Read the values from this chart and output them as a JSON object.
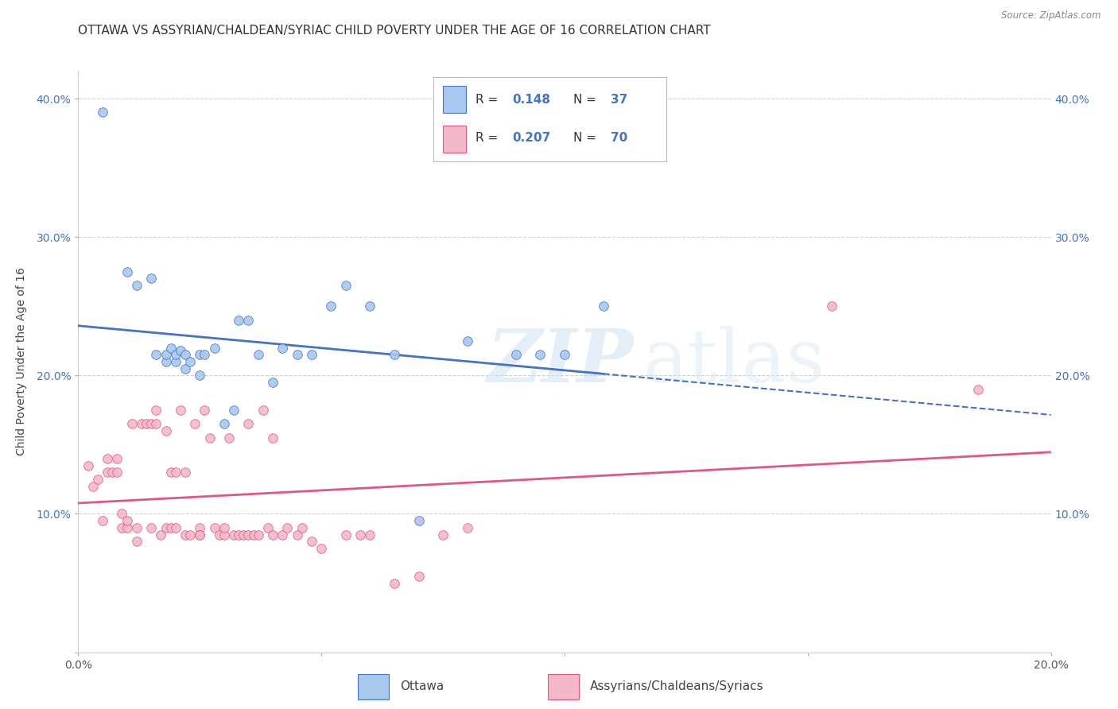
{
  "title": "OTTAWA VS ASSYRIAN/CHALDEAN/SYRIAC CHILD POVERTY UNDER THE AGE OF 16 CORRELATION CHART",
  "source": "Source: ZipAtlas.com",
  "ylabel": "Child Poverty Under the Age of 16",
  "xlim": [
    0.0,
    0.2
  ],
  "ylim": [
    0.0,
    0.42
  ],
  "xticks": [
    0.0,
    0.05,
    0.1,
    0.15,
    0.2
  ],
  "xtick_labels": [
    "0.0%",
    "",
    "",
    "",
    "20.0%"
  ],
  "yticks": [
    0.0,
    0.1,
    0.2,
    0.3,
    0.4
  ],
  "ytick_labels_left": [
    "",
    "10.0%",
    "20.0%",
    "30.0%",
    "40.0%"
  ],
  "ytick_labels_right": [
    "",
    "10.0%",
    "20.0%",
    "30.0%",
    "40.0%"
  ],
  "legend_labels": [
    "Ottawa",
    "Assyrians/Chaldeans/Syriacs"
  ],
  "ottawa_color": "#a8c8f0",
  "assyrian_color": "#f5b8c8",
  "ottawa_line_color": "#4472c4",
  "assyrian_line_color": "#e05880",
  "R_ottawa": 0.148,
  "N_ottawa": 37,
  "R_assyrian": 0.207,
  "N_assyrian": 70,
  "background_color": "#ffffff",
  "grid_color": "#d0d0d0",
  "watermark_zip": "ZIP",
  "watermark_atlas": "atlas",
  "title_fontsize": 11,
  "axis_label_fontsize": 10,
  "tick_fontsize": 10,
  "ottawa_x": [
    0.005,
    0.01,
    0.012,
    0.015,
    0.016,
    0.018,
    0.018,
    0.019,
    0.02,
    0.02,
    0.021,
    0.022,
    0.022,
    0.023,
    0.025,
    0.025,
    0.026,
    0.028,
    0.03,
    0.032,
    0.033,
    0.035,
    0.037,
    0.04,
    0.042,
    0.045,
    0.048,
    0.052,
    0.055,
    0.06,
    0.065,
    0.07,
    0.08,
    0.09,
    0.095,
    0.1,
    0.108
  ],
  "ottawa_y": [
    0.39,
    0.275,
    0.265,
    0.27,
    0.215,
    0.21,
    0.215,
    0.22,
    0.21,
    0.215,
    0.218,
    0.205,
    0.215,
    0.21,
    0.2,
    0.215,
    0.215,
    0.22,
    0.165,
    0.175,
    0.24,
    0.24,
    0.215,
    0.195,
    0.22,
    0.215,
    0.215,
    0.25,
    0.265,
    0.25,
    0.215,
    0.095,
    0.225,
    0.215,
    0.215,
    0.215,
    0.25
  ],
  "assyrian_x": [
    0.002,
    0.003,
    0.004,
    0.005,
    0.006,
    0.006,
    0.007,
    0.008,
    0.008,
    0.009,
    0.009,
    0.01,
    0.01,
    0.011,
    0.012,
    0.012,
    0.013,
    0.014,
    0.015,
    0.015,
    0.016,
    0.016,
    0.017,
    0.018,
    0.018,
    0.019,
    0.019,
    0.02,
    0.02,
    0.021,
    0.022,
    0.022,
    0.023,
    0.024,
    0.025,
    0.025,
    0.025,
    0.026,
    0.027,
    0.028,
    0.029,
    0.03,
    0.03,
    0.031,
    0.032,
    0.033,
    0.034,
    0.035,
    0.035,
    0.036,
    0.037,
    0.038,
    0.039,
    0.04,
    0.04,
    0.042,
    0.043,
    0.045,
    0.046,
    0.048,
    0.05,
    0.055,
    0.058,
    0.06,
    0.065,
    0.07,
    0.075,
    0.08,
    0.155,
    0.185
  ],
  "assyrian_y": [
    0.135,
    0.12,
    0.125,
    0.095,
    0.13,
    0.14,
    0.13,
    0.13,
    0.14,
    0.09,
    0.1,
    0.09,
    0.095,
    0.165,
    0.08,
    0.09,
    0.165,
    0.165,
    0.09,
    0.165,
    0.165,
    0.175,
    0.085,
    0.16,
    0.09,
    0.09,
    0.13,
    0.09,
    0.13,
    0.175,
    0.13,
    0.085,
    0.085,
    0.165,
    0.09,
    0.085,
    0.085,
    0.175,
    0.155,
    0.09,
    0.085,
    0.085,
    0.09,
    0.155,
    0.085,
    0.085,
    0.085,
    0.085,
    0.165,
    0.085,
    0.085,
    0.175,
    0.09,
    0.085,
    0.155,
    0.085,
    0.09,
    0.085,
    0.09,
    0.08,
    0.075,
    0.085,
    0.085,
    0.085,
    0.05,
    0.055,
    0.085,
    0.09,
    0.25,
    0.19
  ]
}
